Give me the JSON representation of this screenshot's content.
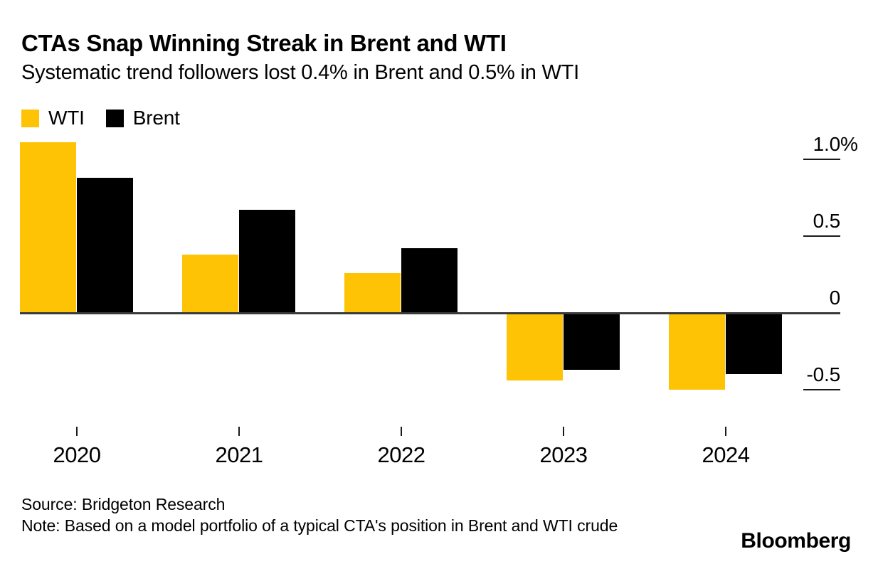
{
  "header": {
    "title": "CTAs Snap Winning Streak in Brent and WTI",
    "subtitle": "Systematic trend followers lost 0.4% in Brent and 0.5% in WTI"
  },
  "legend": [
    {
      "label": "WTI",
      "color": "#FFC306"
    },
    {
      "label": "Brent",
      "color": "#000000"
    }
  ],
  "chart_data": {
    "type": "bar",
    "title": "CTAs Snap Winning Streak in Brent and WTI",
    "subtitle": "Systematic trend followers lost 0.4% in Brent and 0.5% in WTI",
    "categories": [
      "2020",
      "2021",
      "2022",
      "2023",
      "2024"
    ],
    "series": [
      {
        "name": "WTI",
        "color": "#FFC306",
        "values": [
          1.11,
          0.38,
          0.26,
          -0.44,
          -0.5
        ]
      },
      {
        "name": "Brent",
        "color": "#000000",
        "values": [
          0.88,
          0.67,
          0.42,
          -0.37,
          -0.4
        ]
      }
    ],
    "xlabel": "",
    "ylabel": "%",
    "ylim": [
      -0.65,
      1.15
    ],
    "yticks": [
      {
        "value": 1.0,
        "label": "1.0%"
      },
      {
        "value": 0.5,
        "label": "0.5"
      },
      {
        "value": 0,
        "label": "0"
      },
      {
        "value": -0.5,
        "label": "-0.5"
      }
    ],
    "grid": "off",
    "legend_position": "top-left",
    "axis_style": "right-tick-segments, zero-baseline"
  },
  "footer": {
    "source": "Source: Bridgeton Research",
    "note": "Note: Based on a model portfolio of a typical CTA's position in Brent and WTI crude",
    "brand": "Bloomberg"
  }
}
